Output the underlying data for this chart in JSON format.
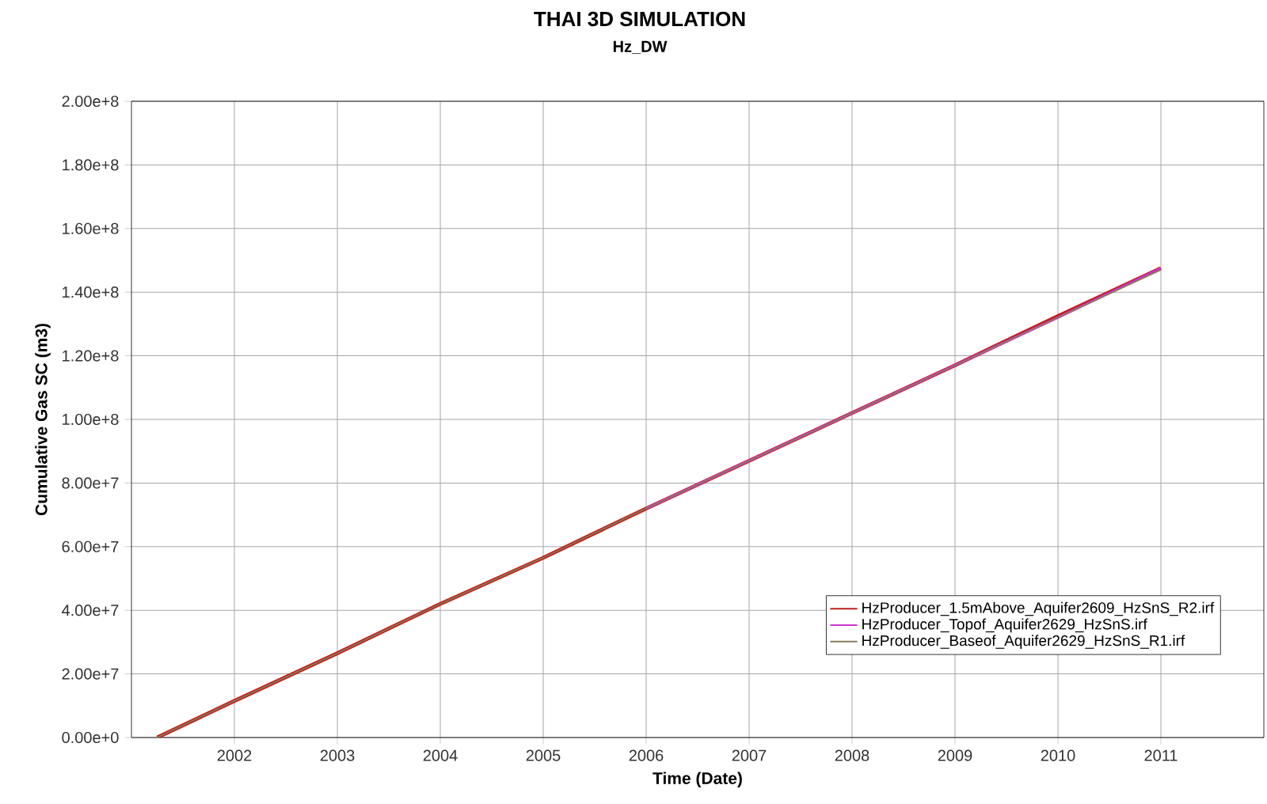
{
  "chart_data": {
    "type": "line",
    "title": "THAI 3D SIMULATION",
    "subtitle": "Hz_DW",
    "xlabel": "Time (Date)",
    "ylabel": "Cumulative Gas SC (m3)",
    "x": [
      "2001-04-01",
      "2002-01-01",
      "2003-01-01",
      "2004-01-01",
      "2005-01-01",
      "2006-01-01",
      "2007-01-01",
      "2008-01-01",
      "2009-01-01",
      "2010-01-01",
      "2011-01-01"
    ],
    "series": [
      {
        "name": "HzProducer_1.5mAbove_Aquifer2609_HzSnS_R2.irf",
        "color": "#c0201a",
        "values": [
          0,
          11500000,
          26500000,
          42000000,
          56500000,
          72000000,
          87000000,
          102000000,
          117000000,
          132500000,
          147500000
        ]
      },
      {
        "name": "HzProducer_Topof_Aquifer2629_HzSnS.irf",
        "color": "#cc33cc",
        "values": [
          null,
          null,
          null,
          null,
          null,
          72000000,
          87000000,
          102000000,
          117000000,
          132000000,
          147500000
        ]
      },
      {
        "name": "HzProducer_Baseof_Aquifer2629_HzSnS_R1.irf",
        "color": "#8b7d5b",
        "values": [
          0,
          11500000,
          26500000,
          42000000,
          56500000,
          72000000,
          87000000,
          102000000,
          117000000,
          132000000,
          147000000
        ]
      }
    ],
    "xlim": [
      "2001-01-01",
      "2012-01-01"
    ],
    "xticks": [
      "2002",
      "2003",
      "2004",
      "2005",
      "2006",
      "2007",
      "2008",
      "2009",
      "2010",
      "2011"
    ],
    "ylim": [
      0,
      200000000
    ],
    "yticks": [
      {
        "value": 0,
        "label": "0.00e+0"
      },
      {
        "value": 20000000,
        "label": "2.00e+7"
      },
      {
        "value": 40000000,
        "label": "4.00e+7"
      },
      {
        "value": 60000000,
        "label": "6.00e+7"
      },
      {
        "value": 80000000,
        "label": "8.00e+7"
      },
      {
        "value": 100000000,
        "label": "1.00e+8"
      },
      {
        "value": 120000000,
        "label": "1.20e+8"
      },
      {
        "value": 140000000,
        "label": "1.40e+8"
      },
      {
        "value": 160000000,
        "label": "1.60e+8"
      },
      {
        "value": 180000000,
        "label": "1.80e+8"
      },
      {
        "value": 200000000,
        "label": "2.00e+8"
      }
    ],
    "grid": true,
    "legend": "bottom right",
    "marker": "none",
    "line_style": "solid"
  }
}
